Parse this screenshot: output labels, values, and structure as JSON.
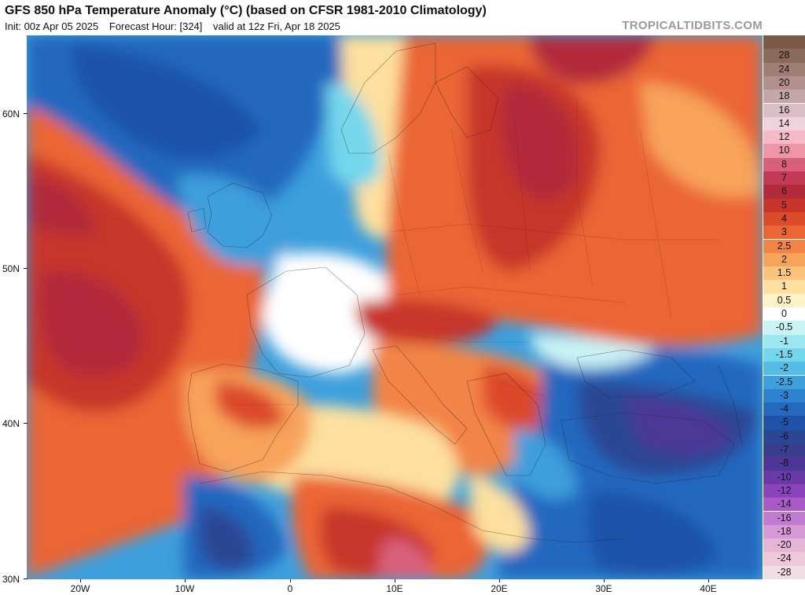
{
  "header": {
    "title": "GFS 850 hPa Temperature Anomaly (°C) (based on CFSR 1981-2010 Climatology)",
    "init": "Init: 00z Apr 05 2025",
    "forecast_hour": "Forecast Hour: [324]",
    "valid": "valid at 12z Fri, Apr 18 2025",
    "brand": "TROPICALTIDBITS.COM"
  },
  "axes": {
    "lat_labels": [
      "60N",
      "50N",
      "40N",
      "30N"
    ],
    "lon_labels": [
      "20W",
      "10W",
      "0",
      "10E",
      "20E",
      "30E",
      "40E"
    ]
  },
  "colorbar": {
    "levels": [
      {
        "label": "",
        "color": "#7a5a45"
      },
      {
        "label": "28",
        "color": "#8a6a58"
      },
      {
        "label": "24",
        "color": "#9e7f72"
      },
      {
        "label": "20",
        "color": "#b2918c"
      },
      {
        "label": "18",
        "color": "#c6a7a9"
      },
      {
        "label": "16",
        "color": "#dcbfc4"
      },
      {
        "label": "14",
        "color": "#f0d2dc"
      },
      {
        "label": "12",
        "color": "#f5b9c8"
      },
      {
        "label": "10",
        "color": "#ee95a8"
      },
      {
        "label": "8",
        "color": "#d9607a"
      },
      {
        "label": "7",
        "color": "#c23a55"
      },
      {
        "label": "6",
        "color": "#b22b3a"
      },
      {
        "label": "5",
        "color": "#c8342a"
      },
      {
        "label": "4",
        "color": "#dc4a2c"
      },
      {
        "label": "3",
        "color": "#eb6535"
      },
      {
        "label": "2.5",
        "color": "#f38447"
      },
      {
        "label": "2",
        "color": "#f8a35c"
      },
      {
        "label": "1.5",
        "color": "#fbc37c"
      },
      {
        "label": "1",
        "color": "#fde09f"
      },
      {
        "label": "0.5",
        "color": "#fef2c6"
      },
      {
        "label": "0",
        "color": "#ffffff"
      },
      {
        "label": "-0.5",
        "color": "#c9f3f5"
      },
      {
        "label": "-1",
        "color": "#9de8f0"
      },
      {
        "label": "-1.5",
        "color": "#74d6ec"
      },
      {
        "label": "-2",
        "color": "#53bde6"
      },
      {
        "label": "-2.5",
        "color": "#3d9fdc"
      },
      {
        "label": "-3",
        "color": "#2e82cf"
      },
      {
        "label": "-4",
        "color": "#2468bf"
      },
      {
        "label": "-5",
        "color": "#1f52a8"
      },
      {
        "label": "-6",
        "color": "#2a4694"
      },
      {
        "label": "-7",
        "color": "#3a3c8e"
      },
      {
        "label": "-8",
        "color": "#4c3797"
      },
      {
        "label": "-10",
        "color": "#6a3aa8"
      },
      {
        "label": "-12",
        "color": "#8a44bb"
      },
      {
        "label": "-14",
        "color": "#a95ac6"
      },
      {
        "label": "-16",
        "color": "#c37bcf"
      },
      {
        "label": "-18",
        "color": "#d89ad6"
      },
      {
        "label": "-20",
        "color": "#e6b4d7"
      },
      {
        "label": "-24",
        "color": "#edc9d8"
      },
      {
        "label": "-28",
        "color": "#f3dde4"
      }
    ]
  },
  "colors": {
    "ocean_cold": "#3d9fdc",
    "deep_cold": "#1f52a8",
    "warm": "#eb6535",
    "hot": "#b22b3a",
    "neutral": "#ffffff"
  }
}
